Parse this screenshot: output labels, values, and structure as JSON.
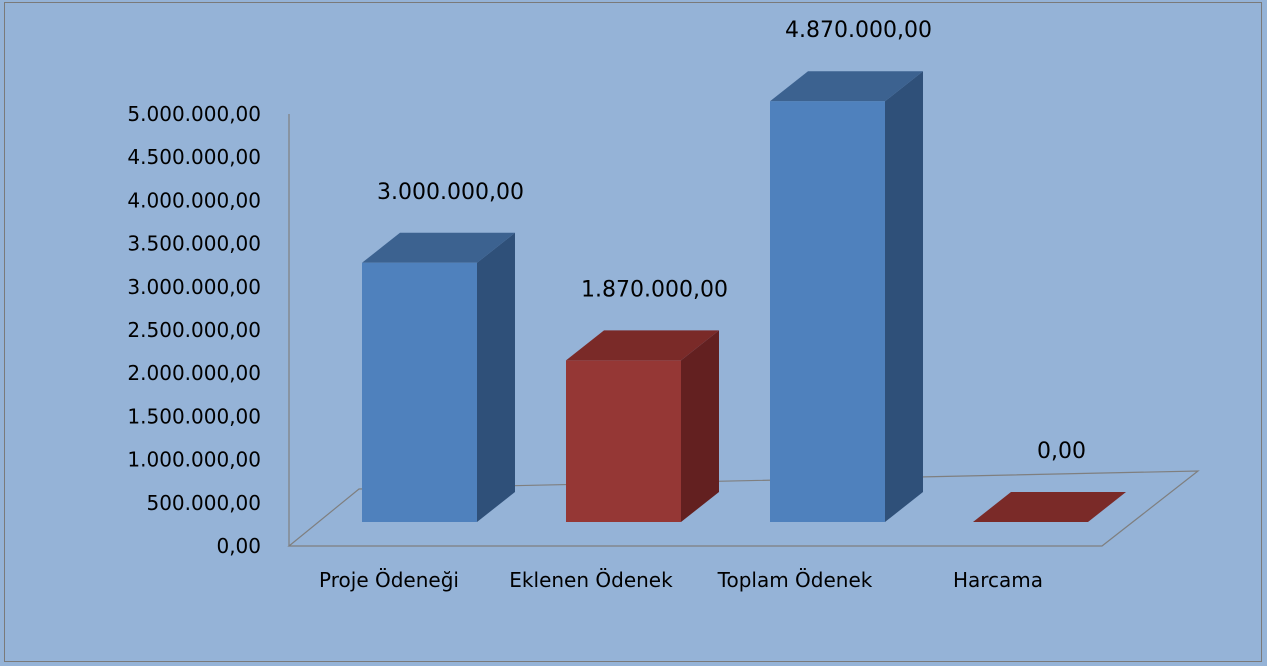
{
  "chart_data": {
    "type": "bar",
    "style": "3d-column",
    "categories": [
      "Proje Ödeneği",
      "Eklenen Ödenek",
      "Toplam Ödenek",
      "Harcama"
    ],
    "values": [
      3000000,
      1870000,
      4870000,
      0
    ],
    "data_labels": [
      "3.000.000,00",
      "1.870.000,00",
      "4.870.000,00",
      "0,00"
    ],
    "y_ticks": [
      0,
      500000,
      1000000,
      1500000,
      2000000,
      2500000,
      3000000,
      3500000,
      4000000,
      4500000,
      5000000
    ],
    "y_tick_labels": [
      "0,00",
      "500.000,00",
      "1.000.000,00",
      "1.500.000,00",
      "2.000.000,00",
      "2.500.000,00",
      "3.000.000,00",
      "3.500.000,00",
      "4.000.000,00",
      "4.500.000,00",
      "5.000.000,00"
    ],
    "ylim": [
      0,
      5000000
    ],
    "grid": false,
    "legend": "none",
    "colors": {
      "background": "#95b3d7",
      "blue_front": "#4f81bd",
      "blue_side": "#2f5079",
      "blue_top": "#3c6290",
      "red_front": "#953735",
      "red_side": "#632020",
      "red_top": "#7a2a28",
      "floor_line": "#7f7f7f"
    },
    "bar_colors": [
      "blue",
      "red",
      "blue",
      "red"
    ]
  }
}
